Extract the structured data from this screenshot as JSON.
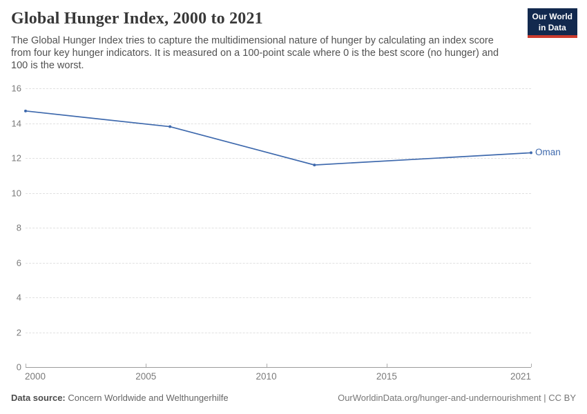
{
  "header": {
    "title": "Global Hunger Index, 2000 to 2021",
    "subtitle": "The Global Hunger Index tries to capture the multidimensional nature of hunger by calculating an index score from four key hunger indicators. It is measured on a 100-point scale where 0 is the best score (no hunger) and 100 is the worst."
  },
  "logo": {
    "line1": "Our World",
    "line2": "in Data",
    "bg_color": "#12294e",
    "accent_color": "#cc3b2d"
  },
  "chart_data": {
    "type": "line",
    "title": "Global Hunger Index, 2000 to 2021",
    "xlabel": "",
    "ylabel": "",
    "xlim": [
      2000,
      2021
    ],
    "ylim": [
      0,
      16
    ],
    "x_ticks": [
      {
        "value": 2000,
        "label": "2000"
      },
      {
        "value": 2005,
        "label": "2005"
      },
      {
        "value": 2010,
        "label": "2010"
      },
      {
        "value": 2015,
        "label": "2015"
      },
      {
        "value": 2021,
        "label": "2021"
      }
    ],
    "y_ticks": [
      0,
      2,
      4,
      6,
      8,
      10,
      12,
      14,
      16
    ],
    "grid": "horizontal-dashed",
    "legend_position": "line-end-label",
    "series": [
      {
        "name": "Oman",
        "color": "#3e69ad",
        "x": [
          2000,
          2006,
          2012,
          2021
        ],
        "values": [
          14.7,
          13.8,
          11.6,
          12.3
        ]
      }
    ]
  },
  "footer": {
    "source_label": "Data source:",
    "source_value": " Concern Worldwide and Welthungerhilfe",
    "attribution": "OurWorldinData.org/hunger-and-undernourishment | CC BY"
  }
}
